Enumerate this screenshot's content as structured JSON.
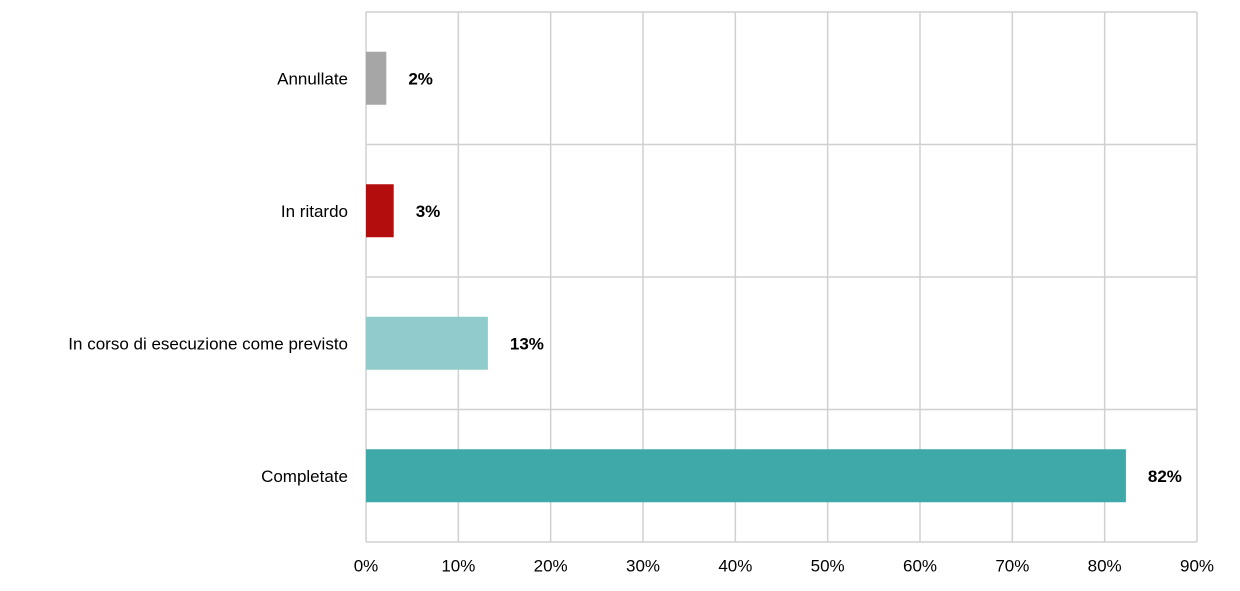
{
  "chart_data": {
    "type": "bar",
    "orientation": "horizontal",
    "categories": [
      "Annullate",
      "In ritardo",
      "In corso di esecuzione come previsto",
      "Completate"
    ],
    "values": [
      2.2,
      3,
      13.2,
      82.3
    ],
    "value_labels": [
      "2%",
      "3%",
      "13%",
      "82%"
    ],
    "colors": [
      "#a6a6a6",
      "#b30d0d",
      "#92cbcb",
      "#3fa8a8"
    ],
    "xlim": [
      0,
      90
    ],
    "xticks": [
      {
        "value": 0,
        "label": "0%"
      },
      {
        "value": 10,
        "label": "10%"
      },
      {
        "value": 20,
        "label": "20%"
      },
      {
        "value": 30,
        "label": "30%"
      },
      {
        "value": 40,
        "label": "40%"
      },
      {
        "value": 50,
        "label": "50%"
      },
      {
        "value": 60,
        "label": "60%"
      },
      {
        "value": 70,
        "label": "70%"
      },
      {
        "value": 80,
        "label": "80%"
      },
      {
        "value": 90,
        "label": "90%"
      }
    ],
    "grid": true
  }
}
